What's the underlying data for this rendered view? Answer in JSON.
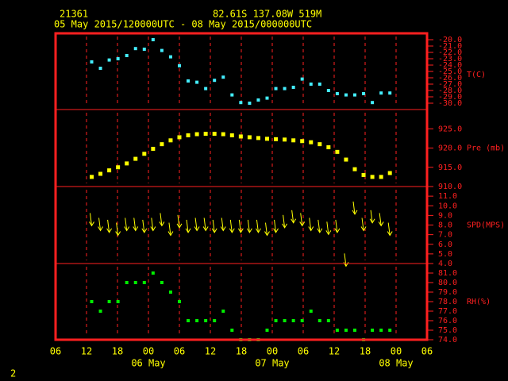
{
  "header": {
    "station": "21361",
    "location": "82.61S 137.08W 519M",
    "period": "05 May 2015/120000UTC - 08 May 2015/000000UTC",
    "page": "2"
  },
  "chart_data": [
    {
      "type": "scatter",
      "ylabel": "T(C)",
      "color": "#44eeff",
      "x": [
        7.0,
        8.7,
        10.4,
        12.1,
        13.8,
        15.5,
        17.2,
        18.9,
        20.6,
        22.3,
        24.0,
        25.7,
        27.4,
        29.1,
        30.8,
        32.5,
        34.2,
        35.9,
        37.6,
        39.3,
        41.0,
        42.7,
        44.4,
        46.1,
        47.8,
        49.5,
        51.2,
        52.9,
        54.6,
        56.3,
        58.0,
        59.7,
        61.4,
        63.1,
        64.8
      ],
      "values": [
        -23.5,
        -24.5,
        -23.2,
        -23.0,
        -22.5,
        -21.4,
        -21.5,
        -20.0,
        -21.7,
        -22.7,
        -24.1,
        -26.5,
        -26.7,
        -27.7,
        -26.4,
        -25.9,
        -28.7,
        -29.9,
        -30.0,
        -29.5,
        -29.2,
        -27.7,
        -27.7,
        -27.5,
        -26.2,
        -27.0,
        -27.0,
        -28.0,
        -28.5,
        -28.7,
        -28.7,
        -28.5,
        -29.9,
        -28.4,
        -28.4
      ],
      "xlim": [
        0,
        72
      ],
      "ylim": [
        -31,
        -19
      ],
      "yticks": [
        {
          "value": -20,
          "label": "-20.0"
        },
        {
          "value": -21,
          "label": "-21.0"
        },
        {
          "value": -22,
          "label": "-22.0"
        },
        {
          "value": -23,
          "label": "-23.0"
        },
        {
          "value": -24,
          "label": "-24.0"
        },
        {
          "value": -25,
          "label": "-25.0"
        },
        {
          "value": -26,
          "label": "-26.0"
        },
        {
          "value": -27,
          "label": "-27.0"
        },
        {
          "value": -28,
          "label": "-28.0"
        },
        {
          "value": -29,
          "label": "-29.0"
        },
        {
          "value": -30,
          "label": "-30.0"
        }
      ]
    },
    {
      "type": "scatter",
      "ylabel": "Pre (mb)",
      "color": "#ffff00",
      "x": [
        7.0,
        8.7,
        10.4,
        12.1,
        13.8,
        15.5,
        17.2,
        18.9,
        20.6,
        22.3,
        24.0,
        25.7,
        27.4,
        29.1,
        30.8,
        32.5,
        34.2,
        35.9,
        37.6,
        39.3,
        41.0,
        42.7,
        44.4,
        46.1,
        47.8,
        49.5,
        51.2,
        52.9,
        54.6,
        56.3,
        58.0,
        59.7,
        61.4,
        63.1,
        64.8
      ],
      "values": [
        912.5,
        913.3,
        914.2,
        915.0,
        916.0,
        917.2,
        918.5,
        919.8,
        921.0,
        922.0,
        922.8,
        923.3,
        923.6,
        923.7,
        923.7,
        923.6,
        923.3,
        923.0,
        922.8,
        922.6,
        922.4,
        922.3,
        922.2,
        922.0,
        921.8,
        921.5,
        921.0,
        920.2,
        919.0,
        917.0,
        914.5,
        913.0,
        912.5,
        912.5,
        913.5
      ],
      "xlim": [
        0,
        72
      ],
      "ylim": [
        910,
        930
      ],
      "yticks": [
        {
          "value": 925,
          "label": "925.0"
        },
        {
          "value": 920,
          "label": "920.0"
        },
        {
          "value": 915,
          "label": "915.0"
        },
        {
          "value": 910,
          "label": "910.0"
        }
      ]
    },
    {
      "type": "wind",
      "ylabel": "SPD(MPS)",
      "color": "#ffff00",
      "x": [
        7.0,
        8.7,
        10.4,
        12.1,
        13.8,
        15.5,
        17.2,
        18.9,
        20.6,
        22.3,
        24.0,
        25.7,
        27.4,
        29.1,
        30.8,
        32.5,
        34.2,
        35.9,
        37.6,
        39.3,
        41.0,
        42.7,
        44.4,
        46.1,
        47.8,
        49.5,
        51.2,
        52.9,
        54.6,
        56.3,
        58.0,
        59.7,
        61.4,
        63.1,
        64.8
      ],
      "values": [
        8.5,
        8.0,
        7.8,
        7.5,
        8.0,
        8.0,
        7.8,
        8.0,
        8.5,
        7.5,
        8.3,
        7.8,
        8.0,
        8.0,
        7.8,
        8.0,
        7.8,
        7.8,
        7.8,
        7.8,
        7.5,
        7.8,
        8.3,
        8.8,
        8.5,
        8.0,
        7.8,
        7.6,
        7.8,
        4.3,
        9.7,
        8.0,
        8.8,
        8.5,
        7.5
      ],
      "xlim": [
        0,
        72
      ],
      "ylim": [
        4,
        12
      ],
      "yticks": [
        {
          "value": 11,
          "label": "11.0"
        },
        {
          "value": 10,
          "label": "10.0"
        },
        {
          "value": 9,
          "label": "9.0"
        },
        {
          "value": 8,
          "label": "8.0"
        },
        {
          "value": 7,
          "label": "7.0"
        },
        {
          "value": 6,
          "label": "6.0"
        },
        {
          "value": 5,
          "label": "5.0"
        },
        {
          "value": 4,
          "label": "4.0"
        }
      ]
    },
    {
      "type": "scatter",
      "ylabel": "RH(%)",
      "color": "#00ee00",
      "x": [
        7.0,
        8.7,
        10.4,
        12.1,
        13.8,
        15.5,
        17.2,
        18.9,
        20.6,
        22.3,
        24.0,
        25.7,
        27.4,
        29.1,
        30.8,
        32.5,
        34.2,
        35.9,
        37.6,
        39.3,
        41.0,
        42.7,
        44.4,
        46.1,
        47.8,
        49.5,
        51.2,
        52.9,
        54.6,
        56.3,
        58.0,
        59.7,
        61.4,
        63.1,
        64.8
      ],
      "values": [
        78,
        77,
        78,
        78,
        80,
        80,
        80,
        81,
        80,
        79,
        78,
        76,
        76,
        76,
        76,
        77,
        75,
        74,
        74,
        74,
        75,
        76,
        76,
        76,
        76,
        77,
        76,
        76,
        75,
        75,
        75,
        74,
        75,
        75,
        75
      ],
      "xlim": [
        0,
        72
      ],
      "ylim": [
        74,
        82
      ],
      "yticks": [
        {
          "value": 81,
          "label": "81.0"
        },
        {
          "value": 80,
          "label": "80.0"
        },
        {
          "value": 79,
          "label": "79.0"
        },
        {
          "value": 78,
          "label": "78.0"
        },
        {
          "value": 77,
          "label": "77.0"
        },
        {
          "value": 76,
          "label": "76.0"
        },
        {
          "value": 75,
          "label": "75.0"
        },
        {
          "value": 74,
          "label": "74.0"
        }
      ],
      "xticks": [
        {
          "value": 0,
          "label": "06"
        },
        {
          "value": 6,
          "label": "12"
        },
        {
          "value": 12,
          "label": "18"
        },
        {
          "value": 18,
          "label": "00"
        },
        {
          "value": 24,
          "label": "06"
        },
        {
          "value": 30,
          "label": "12"
        },
        {
          "value": 36,
          "label": "18"
        },
        {
          "value": 42,
          "label": "00"
        },
        {
          "value": 48,
          "label": "06"
        },
        {
          "value": 54,
          "label": "12"
        },
        {
          "value": 60,
          "label": "18"
        },
        {
          "value": 66,
          "label": "00"
        },
        {
          "value": 72,
          "label": "06"
        }
      ],
      "date_labels": [
        {
          "value": 18,
          "label": "06 May"
        },
        {
          "value": 42,
          "label": "07 May"
        },
        {
          "value": 66,
          "label": "08 May"
        }
      ]
    }
  ]
}
